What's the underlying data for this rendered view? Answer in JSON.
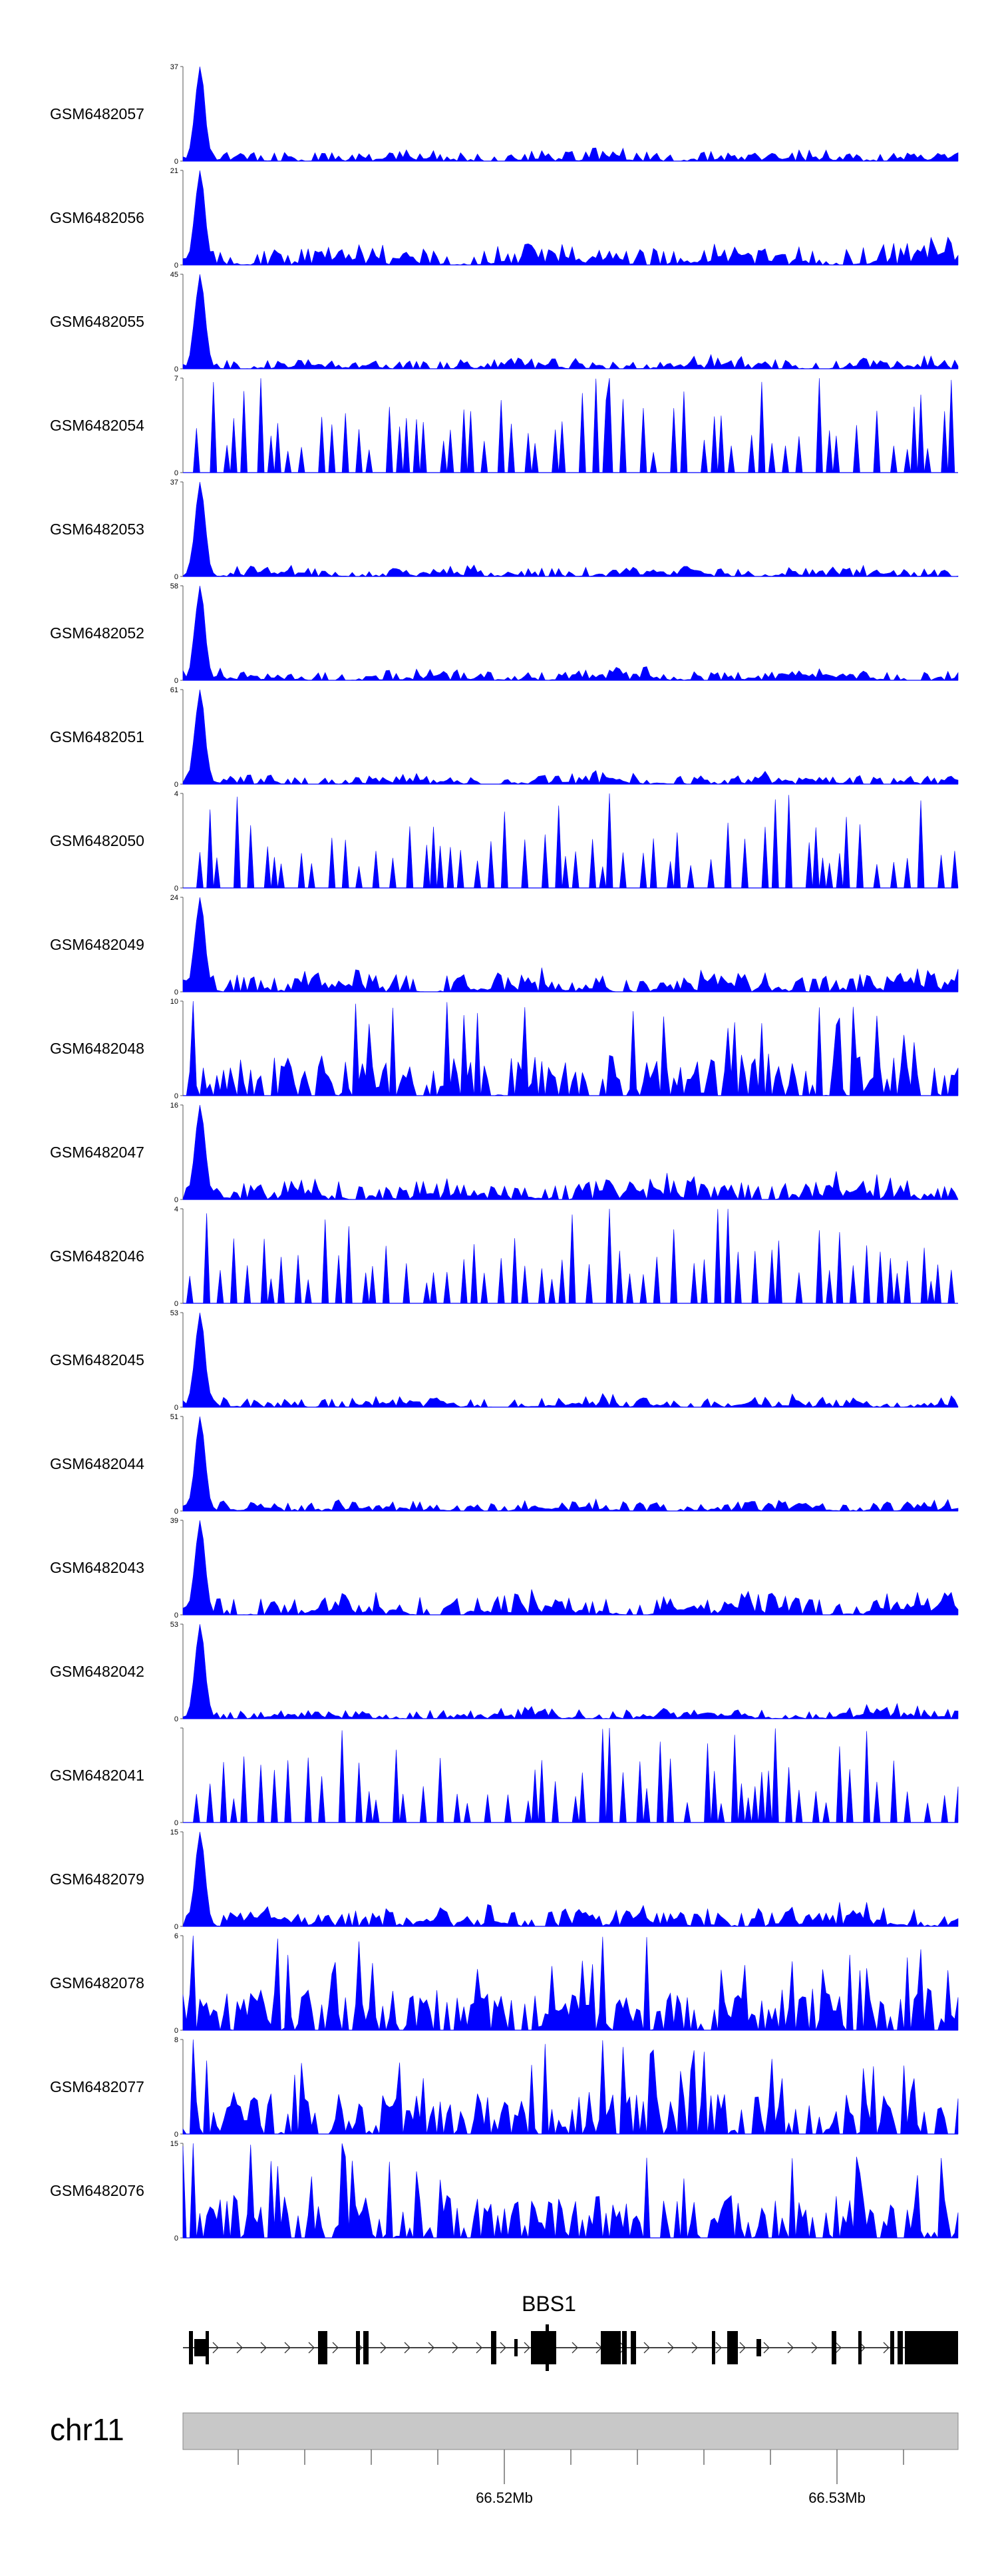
{
  "chart_data": {
    "type": "area",
    "title": "",
    "color": "#0000ff",
    "ymin": 0,
    "tracks": [
      {
        "name": "GSM6482057",
        "ymax": 37,
        "profile": "peaky-strong"
      },
      {
        "name": "GSM6482056",
        "ymax": 21,
        "profile": "peaky-mid"
      },
      {
        "name": "GSM6482055",
        "ymax": 45,
        "profile": "peaky-strong"
      },
      {
        "name": "GSM6482054",
        "ymax": 7,
        "profile": "sparse"
      },
      {
        "name": "GSM6482053",
        "ymax": 37,
        "profile": "peaky-strong"
      },
      {
        "name": "GSM6482052",
        "ymax": 58,
        "profile": "peaky-strong"
      },
      {
        "name": "GSM6482051",
        "ymax": 61,
        "profile": "peaky-strong"
      },
      {
        "name": "GSM6482050",
        "ymax": 4,
        "profile": "sparse"
      },
      {
        "name": "GSM6482049",
        "ymax": 24,
        "profile": "peaky-mid"
      },
      {
        "name": "GSM6482048",
        "ymax": 10,
        "profile": "dense"
      },
      {
        "name": "GSM6482047",
        "ymax": 16,
        "profile": "peaky-mid"
      },
      {
        "name": "GSM6482046",
        "ymax": 4,
        "profile": "sparse"
      },
      {
        "name": "GSM6482045",
        "ymax": 53,
        "profile": "peaky-strong"
      },
      {
        "name": "GSM6482044",
        "ymax": 51,
        "profile": "peaky-strong"
      },
      {
        "name": "GSM6482043",
        "ymax": 39,
        "profile": "peaky-mid"
      },
      {
        "name": "GSM6482042",
        "ymax": 53,
        "profile": "peaky-strong"
      },
      {
        "name": "GSM6482041",
        "ymax": null,
        "profile": "sparse"
      },
      {
        "name": "GSM6482079",
        "ymax": 15,
        "profile": "peaky-mid"
      },
      {
        "name": "GSM6482078",
        "ymax": 6,
        "profile": "dense"
      },
      {
        "name": "GSM6482077",
        "ymax": 8,
        "profile": "dense"
      },
      {
        "name": "GSM6482076",
        "ymax": 15,
        "profile": "dense"
      }
    ],
    "gene": {
      "name": "BBS1"
    },
    "chromosome": "chr11",
    "x_ticks": [
      "66.52Mb",
      "66.53Mb"
    ]
  }
}
